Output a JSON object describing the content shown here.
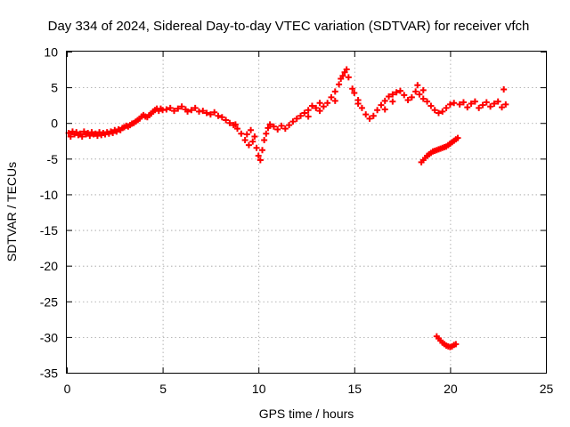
{
  "chart_data": {
    "type": "scatter",
    "title": "Day 334 of 2024, Sidereal Day-to-day VTEC variation (SDTVAR) for receiver vfch",
    "xlabel": "GPS time / hours",
    "ylabel": "SDTVAR / TECUs",
    "xlim": [
      0,
      25
    ],
    "ylim": [
      -35,
      10
    ],
    "xticks": [
      0,
      5,
      10,
      15,
      20,
      25
    ],
    "yticks": [
      10,
      5,
      0,
      -5,
      -10,
      -15,
      -20,
      -25,
      -30,
      -35
    ],
    "grid": true,
    "marker": "plus",
    "marker_color": "#ff0000",
    "series": [
      {
        "name": "SDTVAR",
        "points": [
          [
            0.1,
            -1.4
          ],
          [
            0.2,
            -1.9
          ],
          [
            0.3,
            -1.2
          ],
          [
            0.4,
            -1.6
          ],
          [
            0.5,
            -1.3
          ],
          [
            0.6,
            -1.7
          ],
          [
            0.7,
            -1.5
          ],
          [
            0.8,
            -1.9
          ],
          [
            0.9,
            -1.2
          ],
          [
            1.0,
            -1.6
          ],
          [
            1.1,
            -1.4
          ],
          [
            1.2,
            -1.8
          ],
          [
            1.3,
            -1.3
          ],
          [
            1.4,
            -1.6
          ],
          [
            1.5,
            -1.5
          ],
          [
            1.6,
            -1.8
          ],
          [
            1.7,
            -1.3
          ],
          [
            1.8,
            -1.7
          ],
          [
            1.9,
            -1.4
          ],
          [
            2.0,
            -1.6
          ],
          [
            2.1,
            -1.3
          ],
          [
            2.2,
            -1.5
          ],
          [
            2.3,
            -1.2
          ],
          [
            2.4,
            -1.4
          ],
          [
            2.5,
            -1.0
          ],
          [
            2.6,
            -1.2
          ],
          [
            2.7,
            -0.9
          ],
          [
            2.8,
            -1.0
          ],
          [
            2.9,
            -0.7
          ],
          [
            3.0,
            -0.6
          ],
          [
            3.1,
            -0.4
          ],
          [
            3.2,
            -0.5
          ],
          [
            3.3,
            -0.3
          ],
          [
            3.4,
            -0.1
          ],
          [
            3.5,
            0.0
          ],
          [
            3.6,
            0.2
          ],
          [
            3.7,
            0.4
          ],
          [
            3.8,
            0.6
          ],
          [
            3.9,
            0.9
          ],
          [
            4.0,
            1.1
          ],
          [
            4.1,
            0.9
          ],
          [
            4.2,
            0.8
          ],
          [
            4.3,
            1.1
          ],
          [
            4.4,
            1.3
          ],
          [
            4.5,
            1.6
          ],
          [
            4.6,
            1.8
          ],
          [
            4.7,
            2.0
          ],
          [
            4.8,
            1.7
          ],
          [
            4.9,
            2.0
          ],
          [
            5.0,
            1.8
          ],
          [
            5.2,
            1.9
          ],
          [
            5.4,
            2.1
          ],
          [
            5.6,
            1.7
          ],
          [
            5.8,
            2.0
          ],
          [
            6.0,
            2.3
          ],
          [
            6.2,
            1.9
          ],
          [
            6.3,
            1.6
          ],
          [
            6.5,
            1.8
          ],
          [
            6.7,
            2.1
          ],
          [
            6.9,
            1.6
          ],
          [
            7.1,
            1.7
          ],
          [
            7.3,
            1.4
          ],
          [
            7.5,
            1.2
          ],
          [
            7.7,
            1.5
          ],
          [
            7.9,
            1.0
          ],
          [
            8.1,
            0.8
          ],
          [
            8.3,
            0.4
          ],
          [
            8.5,
            0.0
          ],
          [
            8.7,
            -0.3
          ],
          [
            8.9,
            -0.8
          ],
          [
            9.1,
            -1.5
          ],
          [
            9.3,
            -2.4
          ],
          [
            9.5,
            -3.1
          ],
          [
            9.7,
            -2.6
          ],
          [
            9.9,
            -3.5
          ],
          [
            10.0,
            -4.6
          ],
          [
            10.1,
            -5.2
          ],
          [
            10.2,
            -3.8
          ],
          [
            10.3,
            -2.4
          ],
          [
            10.4,
            -1.5
          ],
          [
            10.5,
            -0.7
          ],
          [
            10.6,
            -0.2
          ],
          [
            10.8,
            -0.5
          ],
          [
            11.0,
            -0.9
          ],
          [
            11.2,
            -0.4
          ],
          [
            11.4,
            -0.8
          ],
          [
            11.6,
            -0.3
          ],
          [
            11.8,
            0.2
          ],
          [
            12.0,
            0.6
          ],
          [
            12.2,
            1.0
          ],
          [
            12.4,
            1.4
          ],
          [
            12.6,
            1.8
          ],
          [
            12.8,
            2.4
          ],
          [
            13.0,
            2.1
          ],
          [
            13.2,
            1.7
          ],
          [
            13.4,
            2.3
          ],
          [
            13.6,
            2.8
          ],
          [
            13.8,
            3.6
          ],
          [
            14.0,
            4.4
          ],
          [
            14.2,
            5.4
          ],
          [
            14.3,
            6.2
          ],
          [
            14.4,
            6.6
          ],
          [
            14.5,
            7.1
          ],
          [
            14.6,
            7.5
          ],
          [
            14.7,
            6.4
          ],
          [
            14.9,
            4.8
          ],
          [
            15.0,
            4.2
          ],
          [
            15.2,
            3.2
          ],
          [
            15.4,
            2.1
          ],
          [
            15.6,
            1.2
          ],
          [
            15.8,
            0.6
          ],
          [
            16.0,
            1.0
          ],
          [
            16.2,
            1.8
          ],
          [
            16.4,
            2.5
          ],
          [
            16.6,
            3.1
          ],
          [
            16.8,
            3.7
          ],
          [
            17.0,
            4.0
          ],
          [
            17.2,
            4.3
          ],
          [
            17.4,
            4.5
          ],
          [
            17.6,
            3.9
          ],
          [
            17.8,
            3.2
          ],
          [
            18.0,
            3.6
          ],
          [
            18.2,
            4.4
          ],
          [
            18.4,
            4.0
          ],
          [
            18.6,
            3.4
          ],
          [
            18.8,
            3.0
          ],
          [
            19.0,
            2.4
          ],
          [
            19.2,
            1.8
          ],
          [
            19.4,
            1.4
          ],
          [
            19.6,
            1.6
          ],
          [
            19.8,
            2.1
          ],
          [
            20.0,
            2.6
          ],
          [
            20.2,
            2.8
          ],
          [
            20.5,
            2.6
          ],
          [
            20.7,
            2.9
          ],
          [
            20.9,
            2.2
          ],
          [
            21.1,
            2.7
          ],
          [
            21.3,
            3.0
          ],
          [
            21.5,
            2.1
          ],
          [
            21.7,
            2.5
          ],
          [
            21.9,
            2.9
          ],
          [
            22.1,
            2.3
          ],
          [
            22.3,
            2.7
          ],
          [
            22.5,
            3.0
          ],
          [
            22.7,
            2.2
          ],
          [
            22.8,
            4.7
          ],
          [
            22.9,
            2.6
          ],
          [
            18.5,
            -5.5
          ],
          [
            18.6,
            -5.2
          ],
          [
            18.7,
            -4.9
          ],
          [
            18.8,
            -4.6
          ],
          [
            18.9,
            -4.4
          ],
          [
            19.0,
            -4.2
          ],
          [
            19.1,
            -4.0
          ],
          [
            19.2,
            -3.9
          ],
          [
            19.3,
            -3.8
          ],
          [
            19.4,
            -3.7
          ],
          [
            19.5,
            -3.6
          ],
          [
            19.6,
            -3.5
          ],
          [
            19.7,
            -3.4
          ],
          [
            19.8,
            -3.3
          ],
          [
            19.9,
            -3.1
          ],
          [
            20.0,
            -2.9
          ],
          [
            20.1,
            -2.7
          ],
          [
            20.2,
            -2.5
          ],
          [
            20.3,
            -2.3
          ],
          [
            20.4,
            -2.1
          ],
          [
            19.3,
            -29.9
          ],
          [
            19.4,
            -30.2
          ],
          [
            19.5,
            -30.5
          ],
          [
            19.6,
            -30.8
          ],
          [
            19.7,
            -31.0
          ],
          [
            19.8,
            -31.2
          ],
          [
            19.9,
            -31.3
          ],
          [
            20.0,
            -31.4
          ],
          [
            20.1,
            -31.3
          ],
          [
            20.2,
            -31.1
          ],
          [
            20.3,
            -31.0
          ],
          [
            18.3,
            5.3
          ],
          [
            18.6,
            4.6
          ],
          [
            17.0,
            3.0
          ],
          [
            16.6,
            1.9
          ],
          [
            15.2,
            2.7
          ],
          [
            14.0,
            3.1
          ],
          [
            13.2,
            2.8
          ],
          [
            12.6,
            0.9
          ],
          [
            9.8,
            -1.9
          ],
          [
            9.6,
            -1.0
          ],
          [
            8.8,
            -0.2
          ],
          [
            9.4,
            -1.6
          ]
        ]
      }
    ]
  }
}
